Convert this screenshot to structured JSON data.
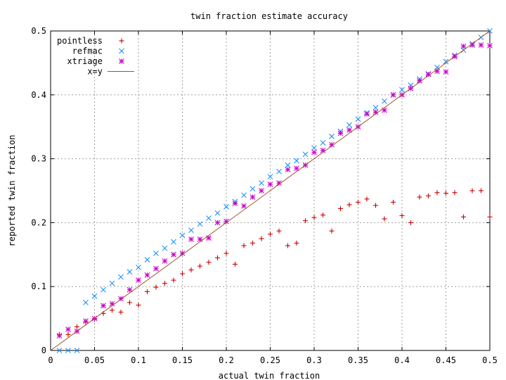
{
  "chart_data": {
    "type": "scatter",
    "title": "twin fraction estimate accuracy",
    "xlabel": "actual twin fraction",
    "ylabel": "reported twin fraction",
    "xlim": [
      0,
      0.5
    ],
    "ylim": [
      0,
      0.5
    ],
    "xticks": [
      "0",
      "0.05",
      "0.1",
      "0.15",
      "0.2",
      "0.25",
      "0.3",
      "0.35",
      "0.4",
      "0.45",
      "0.5"
    ],
    "yticks": [
      "0",
      "0.1",
      "0.2",
      "0.3",
      "0.4",
      "0.5"
    ],
    "grid": true,
    "legend_position": "top-left",
    "series": [
      {
        "name": "pointless",
        "marker": "plus",
        "color": "#cc0000",
        "points": [
          [
            0.01,
            0.025
          ],
          [
            0.02,
            0.025
          ],
          [
            0.03,
            0.037
          ],
          [
            0.04,
            0.044
          ],
          [
            0.05,
            0.049
          ],
          [
            0.06,
            0.058
          ],
          [
            0.07,
            0.063
          ],
          [
            0.08,
            0.06
          ],
          [
            0.09,
            0.075
          ],
          [
            0.1,
            0.071
          ],
          [
            0.11,
            0.092
          ],
          [
            0.12,
            0.099
          ],
          [
            0.13,
            0.105
          ],
          [
            0.14,
            0.11
          ],
          [
            0.15,
            0.12
          ],
          [
            0.16,
            0.126
          ],
          [
            0.17,
            0.132
          ],
          [
            0.18,
            0.138
          ],
          [
            0.19,
            0.145
          ],
          [
            0.2,
            0.152
          ],
          [
            0.21,
            0.135
          ],
          [
            0.22,
            0.164
          ],
          [
            0.23,
            0.168
          ],
          [
            0.24,
            0.175
          ],
          [
            0.25,
            0.182
          ],
          [
            0.26,
            0.187
          ],
          [
            0.27,
            0.164
          ],
          [
            0.28,
            0.168
          ],
          [
            0.29,
            0.203
          ],
          [
            0.3,
            0.208
          ],
          [
            0.31,
            0.212
          ],
          [
            0.32,
            0.187
          ],
          [
            0.33,
            0.222
          ],
          [
            0.34,
            0.228
          ],
          [
            0.35,
            0.232
          ],
          [
            0.36,
            0.237
          ],
          [
            0.37,
            0.227
          ],
          [
            0.38,
            0.206
          ],
          [
            0.39,
            0.232
          ],
          [
            0.4,
            0.211
          ],
          [
            0.41,
            0.2
          ],
          [
            0.42,
            0.24
          ],
          [
            0.43,
            0.242
          ],
          [
            0.44,
            0.247
          ],
          [
            0.45,
            0.246
          ],
          [
            0.46,
            0.247
          ],
          [
            0.47,
            0.209
          ],
          [
            0.48,
            0.25
          ],
          [
            0.49,
            0.25
          ],
          [
            0.5,
            0.209
          ]
        ]
      },
      {
        "name": "refmac",
        "marker": "cross",
        "color": "#1e90ff",
        "points": [
          [
            0.01,
            0.0
          ],
          [
            0.02,
            0.0
          ],
          [
            0.03,
            0.0
          ],
          [
            0.04,
            0.075
          ],
          [
            0.05,
            0.085
          ],
          [
            0.06,
            0.095
          ],
          [
            0.07,
            0.105
          ],
          [
            0.08,
            0.115
          ],
          [
            0.09,
            0.123
          ],
          [
            0.1,
            0.13
          ],
          [
            0.11,
            0.142
          ],
          [
            0.12,
            0.152
          ],
          [
            0.13,
            0.16
          ],
          [
            0.14,
            0.17
          ],
          [
            0.15,
            0.18
          ],
          [
            0.16,
            0.188
          ],
          [
            0.17,
            0.198
          ],
          [
            0.18,
            0.207
          ],
          [
            0.19,
            0.215
          ],
          [
            0.2,
            0.225
          ],
          [
            0.21,
            0.233
          ],
          [
            0.22,
            0.243
          ],
          [
            0.23,
            0.253
          ],
          [
            0.24,
            0.262
          ],
          [
            0.25,
            0.272
          ],
          [
            0.26,
            0.28
          ],
          [
            0.27,
            0.29
          ],
          [
            0.28,
            0.297
          ],
          [
            0.29,
            0.307
          ],
          [
            0.3,
            0.317
          ],
          [
            0.31,
            0.325
          ],
          [
            0.32,
            0.335
          ],
          [
            0.33,
            0.343
          ],
          [
            0.34,
            0.353
          ],
          [
            0.35,
            0.362
          ],
          [
            0.36,
            0.372
          ],
          [
            0.37,
            0.38
          ],
          [
            0.38,
            0.39
          ],
          [
            0.39,
            0.4
          ],
          [
            0.4,
            0.408
          ],
          [
            0.41,
            0.415
          ],
          [
            0.42,
            0.425
          ],
          [
            0.43,
            0.433
          ],
          [
            0.44,
            0.443
          ],
          [
            0.45,
            0.452
          ],
          [
            0.46,
            0.462
          ],
          [
            0.47,
            0.47
          ],
          [
            0.48,
            0.48
          ],
          [
            0.49,
            0.49
          ],
          [
            0.5,
            0.5
          ]
        ]
      },
      {
        "name": "xtriage",
        "marker": "star",
        "color": "#cc00cc",
        "points": [
          [
            0.01,
            0.023
          ],
          [
            0.02,
            0.033
          ],
          [
            0.03,
            0.03
          ],
          [
            0.04,
            0.046
          ],
          [
            0.05,
            0.05
          ],
          [
            0.06,
            0.07
          ],
          [
            0.07,
            0.073
          ],
          [
            0.08,
            0.081
          ],
          [
            0.09,
            0.095
          ],
          [
            0.1,
            0.11
          ],
          [
            0.11,
            0.118
          ],
          [
            0.12,
            0.128
          ],
          [
            0.13,
            0.14
          ],
          [
            0.14,
            0.15
          ],
          [
            0.15,
            0.152
          ],
          [
            0.16,
            0.174
          ],
          [
            0.17,
            0.174
          ],
          [
            0.18,
            0.176
          ],
          [
            0.19,
            0.2
          ],
          [
            0.2,
            0.202
          ],
          [
            0.21,
            0.23
          ],
          [
            0.22,
            0.226
          ],
          [
            0.23,
            0.24
          ],
          [
            0.24,
            0.25
          ],
          [
            0.25,
            0.26
          ],
          [
            0.26,
            0.262
          ],
          [
            0.27,
            0.283
          ],
          [
            0.28,
            0.285
          ],
          [
            0.29,
            0.29
          ],
          [
            0.3,
            0.31
          ],
          [
            0.31,
            0.313
          ],
          [
            0.32,
            0.322
          ],
          [
            0.33,
            0.34
          ],
          [
            0.34,
            0.345
          ],
          [
            0.35,
            0.35
          ],
          [
            0.36,
            0.37
          ],
          [
            0.37,
            0.373
          ],
          [
            0.38,
            0.376
          ],
          [
            0.39,
            0.4
          ],
          [
            0.4,
            0.4
          ],
          [
            0.41,
            0.41
          ],
          [
            0.42,
            0.422
          ],
          [
            0.43,
            0.432
          ],
          [
            0.44,
            0.437
          ],
          [
            0.45,
            0.436
          ],
          [
            0.46,
            0.46
          ],
          [
            0.47,
            0.476
          ],
          [
            0.48,
            0.478
          ],
          [
            0.49,
            0.478
          ],
          [
            0.5,
            0.477
          ]
        ]
      },
      {
        "name": "x=y",
        "marker": "line",
        "color": "#a0522d",
        "points": [
          [
            0.0,
            0.0
          ],
          [
            0.5,
            0.5
          ]
        ]
      }
    ]
  }
}
